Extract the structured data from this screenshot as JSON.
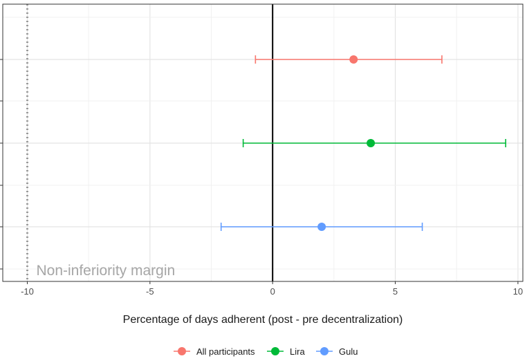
{
  "chart_data": {
    "type": "scatter",
    "xlabel": "Percentage of days adherent (post - pre decentralization)",
    "ylabel": "",
    "xlim": [
      -11.0,
      10.2
    ],
    "x_ticks": [
      -10,
      -5,
      0,
      5,
      10
    ],
    "grid": true,
    "reference_line_x": 0,
    "non_inferiority_margin_x": -10,
    "annotation": "Non-inferiority margin",
    "legend_position": "bottom",
    "series": [
      {
        "name": "All participants",
        "color": "#F8766D",
        "estimate": 3.3,
        "lower": -0.7,
        "upper": 6.9
      },
      {
        "name": "Lira",
        "color": "#00BA38",
        "estimate": 4.0,
        "lower": -1.2,
        "upper": 9.5
      },
      {
        "name": "Gulu",
        "color": "#619CFF",
        "estimate": 2.0,
        "lower": -2.1,
        "upper": 6.1
      }
    ]
  }
}
